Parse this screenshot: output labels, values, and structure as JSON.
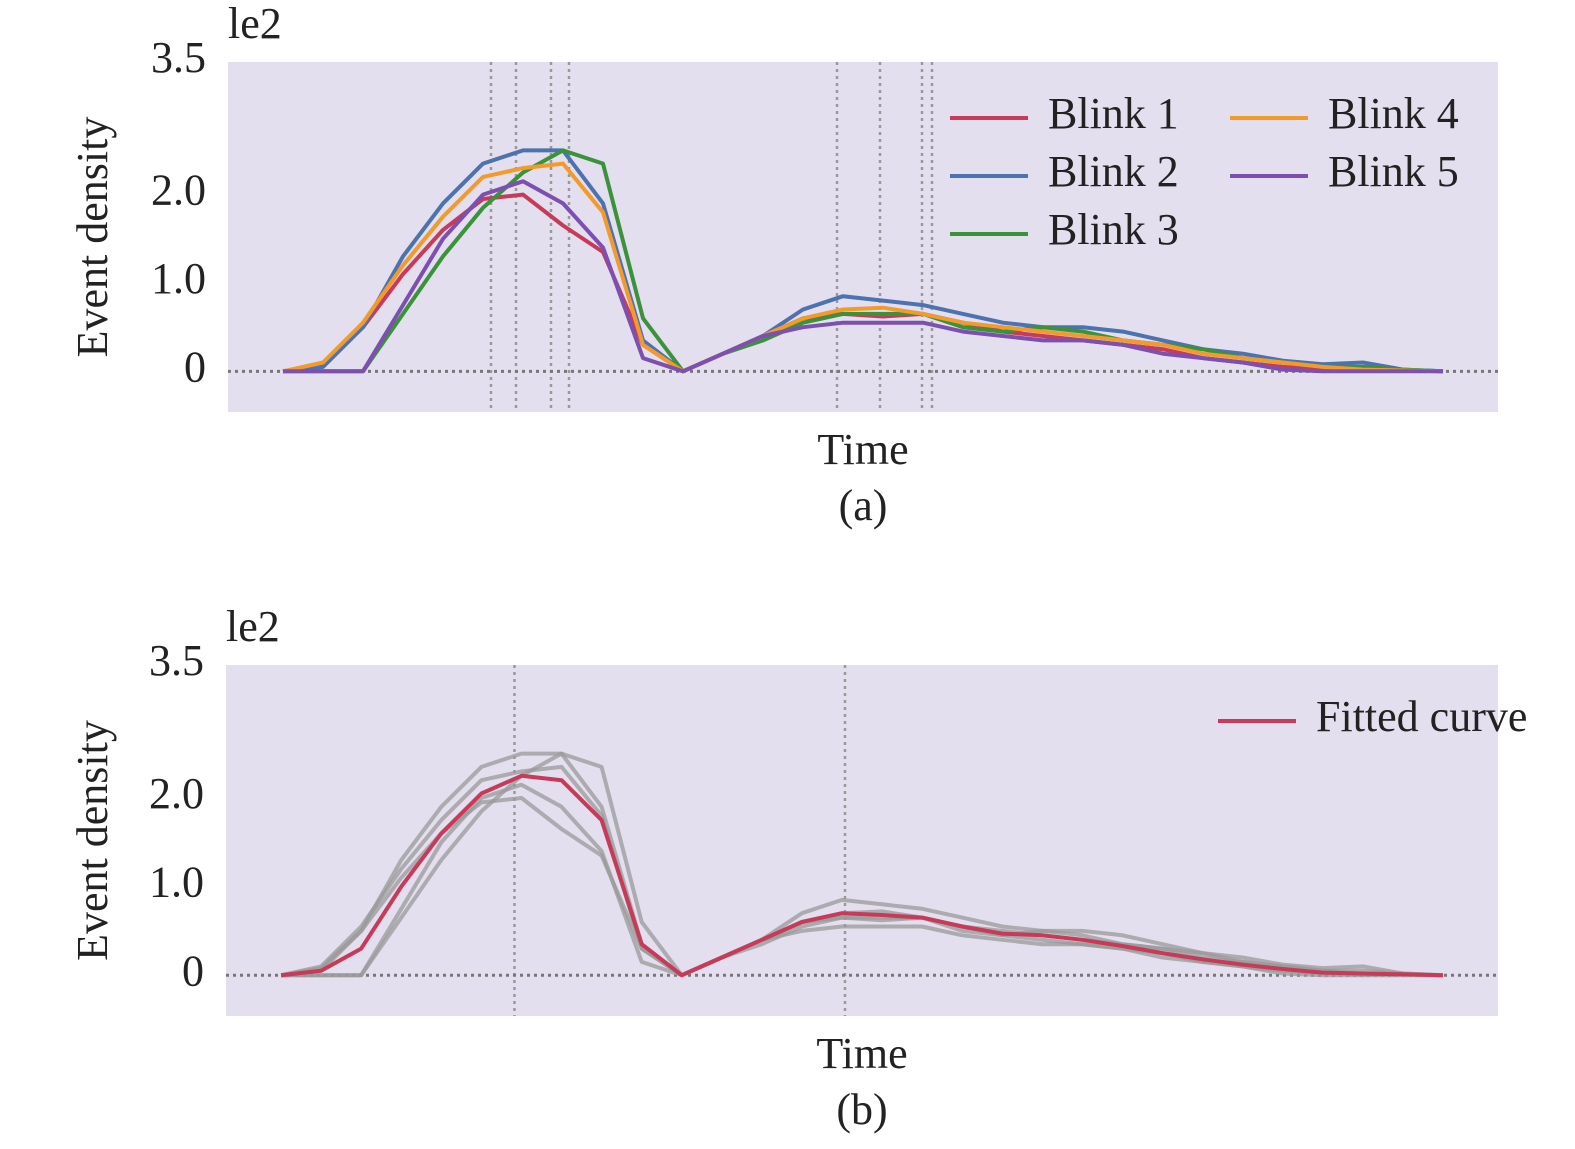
{
  "chart_data": [
    {
      "type": "line",
      "offset_text": "le2",
      "ylabel": "Event density",
      "xlabel": "Time",
      "caption": "(a)",
      "ylim": [
        -0.46,
        3.5
      ],
      "yticks": [
        0,
        {
          "value": 1,
          "label": "1.0"
        },
        {
          "value": 2,
          "label": "2.0"
        },
        3.5
      ],
      "xlim": [
        -1.375,
        30.375
      ],
      "background": "#e3dfee",
      "vlines": [
        5.2,
        5.825,
        6.7,
        7.15,
        13.85,
        14.925,
        15.975,
        16.225
      ],
      "hline": 0,
      "legend": "upper right",
      "legend_ncol": 2,
      "series": [
        {
          "name": "Blink 1",
          "color": "#c73a5a",
          "values": [
            0,
            0.08,
            0.5,
            1.1,
            1.6,
            1.95,
            2.0,
            1.65,
            1.35,
            0.3,
            0,
            0.2,
            0.4,
            0.6,
            0.65,
            0.62,
            0.65,
            0.55,
            0.45,
            0.4,
            0.35,
            0.3,
            0.25,
            0.15,
            0.1,
            0.05,
            0.02,
            0.01,
            0.01,
            0
          ]
        },
        {
          "name": "Blink 2",
          "color": "#4c72b0",
          "values": [
            0,
            0.05,
            0.5,
            1.3,
            1.9,
            2.35,
            2.5,
            2.5,
            1.9,
            0.35,
            0,
            0.2,
            0.4,
            0.7,
            0.85,
            0.8,
            0.75,
            0.65,
            0.55,
            0.5,
            0.5,
            0.45,
            0.35,
            0.25,
            0.2,
            0.12,
            0.08,
            0.1,
            0.02,
            0
          ]
        },
        {
          "name": "Blink 3",
          "color": "#3a923a",
          "values": [
            0,
            0,
            0,
            0.65,
            1.3,
            1.85,
            2.25,
            2.5,
            2.35,
            0.6,
            0,
            0.2,
            0.35,
            0.55,
            0.65,
            0.65,
            0.65,
            0.5,
            0.45,
            0.5,
            0.45,
            0.35,
            0.3,
            0.25,
            0.15,
            0.1,
            0.05,
            0.05,
            0.02,
            0
          ]
        },
        {
          "name": "Blink 4",
          "color": "#f29b2c",
          "values": [
            0,
            0.1,
            0.55,
            1.2,
            1.75,
            2.2,
            2.3,
            2.35,
            1.8,
            0.3,
            0,
            0.2,
            0.4,
            0.6,
            0.7,
            0.72,
            0.65,
            0.55,
            0.5,
            0.45,
            0.4,
            0.35,
            0.3,
            0.2,
            0.15,
            0.1,
            0.05,
            0.02,
            0.01,
            0
          ]
        },
        {
          "name": "Blink 5",
          "color": "#7d4fb0",
          "values": [
            0,
            0,
            0,
            0.75,
            1.5,
            2.0,
            2.15,
            1.9,
            1.4,
            0.15,
            0,
            0.2,
            0.4,
            0.5,
            0.55,
            0.55,
            0.55,
            0.45,
            0.4,
            0.35,
            0.35,
            0.3,
            0.2,
            0.15,
            0.1,
            0.02,
            0,
            0,
            0,
            0
          ]
        }
      ]
    },
    {
      "type": "line",
      "offset_text": "le2",
      "ylabel": "Event density",
      "xlabel": "Time",
      "caption": "(b)",
      "ylim": [
        -0.46,
        3.5
      ],
      "yticks": [
        0,
        {
          "value": 1,
          "label": "1.0"
        },
        {
          "value": 2,
          "label": "2.0"
        },
        3.5
      ],
      "xlim": [
        -1.375,
        30.375
      ],
      "background": "#e3dfee",
      "vlines": [
        5.825,
        14.075
      ],
      "hline": 0,
      "reference_color": "#9a9a9a",
      "legend": "upper right",
      "legend_ncol": 1,
      "series": [
        {
          "name": "Fitted curve",
          "color": "#c73a5a",
          "values": [
            0,
            0.05,
            0.3,
            1.0,
            1.6,
            2.05,
            2.25,
            2.2,
            1.75,
            0.35,
            0,
            0.2,
            0.4,
            0.6,
            0.7,
            0.68,
            0.65,
            0.55,
            0.47,
            0.45,
            0.4,
            0.33,
            0.25,
            0.18,
            0.12,
            0.07,
            0.03,
            0.02,
            0.01,
            0
          ]
        }
      ]
    }
  ]
}
